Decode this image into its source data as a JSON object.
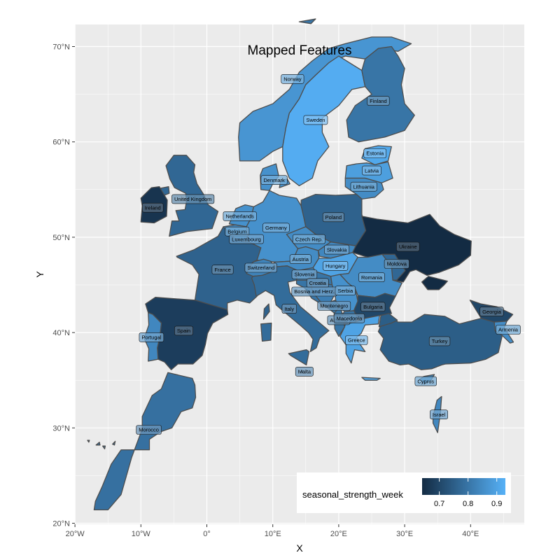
{
  "title": "Mapped Features",
  "x_axis": {
    "title": "X",
    "ticks": [
      "20°W",
      "10°W",
      "0°",
      "10°E",
      "20°E",
      "30°E",
      "40°E"
    ]
  },
  "y_axis": {
    "title": "Y",
    "ticks": [
      "20°N",
      "30°N",
      "40°N",
      "50°N",
      "60°N",
      "70°N"
    ]
  },
  "legend": {
    "title": "seasonal_strength_week",
    "tick_labels": [
      "0.7",
      "0.8",
      "0.9"
    ],
    "color_low": "#132b43",
    "color_high": "#56b1f7",
    "placement": "bottom-right"
  },
  "colors": {
    "panel": "#ebebeb",
    "grid": "#ffffff",
    "border": "#4d4d4d"
  },
  "chart_data": {
    "type": "choropleth",
    "variable": "seasonal_strength_week",
    "value_range": [
      0.64,
      0.93
    ],
    "lon_range": [
      -20,
      48
    ],
    "lat_range": [
      20,
      72
    ],
    "regions": [
      {
        "name": "Norway",
        "value": 0.87
      },
      {
        "name": "Sweden",
        "value": 0.92
      },
      {
        "name": "Finland",
        "value": 0.8
      },
      {
        "name": "Estonia",
        "value": 0.91
      },
      {
        "name": "Latvia",
        "value": 0.89
      },
      {
        "name": "Lithuania",
        "value": 0.85
      },
      {
        "name": "Denmark",
        "value": 0.86
      },
      {
        "name": "United Kingdom",
        "value": 0.77
      },
      {
        "name": "Ireland",
        "value": 0.66
      },
      {
        "name": "Netherlands",
        "value": 0.86
      },
      {
        "name": "Belgium",
        "value": 0.85
      },
      {
        "name": "Luxembourg",
        "value": 0.83
      },
      {
        "name": "Germany",
        "value": 0.86
      },
      {
        "name": "Poland",
        "value": 0.76
      },
      {
        "name": "Czech Rep.",
        "value": 0.85
      },
      {
        "name": "Slovakia",
        "value": 0.84
      },
      {
        "name": "Ukraine",
        "value": 0.64
      },
      {
        "name": "Moldova",
        "value": 0.77
      },
      {
        "name": "Austria",
        "value": 0.85
      },
      {
        "name": "Hungary",
        "value": 0.9
      },
      {
        "name": "Switzerland",
        "value": 0.83
      },
      {
        "name": "Slovenia",
        "value": 0.83
      },
      {
        "name": "Croatia",
        "value": 0.8
      },
      {
        "name": "Bosnia and Herz.",
        "value": 0.82
      },
      {
        "name": "Serbia",
        "value": 0.86
      },
      {
        "name": "Romania",
        "value": 0.85
      },
      {
        "name": "Montenegro",
        "value": 0.8
      },
      {
        "name": "Albania",
        "value": 0.8
      },
      {
        "name": "Macedonia",
        "value": 0.8
      },
      {
        "name": "Bulgaria",
        "value": 0.7
      },
      {
        "name": "Greece",
        "value": 0.9
      },
      {
        "name": "France",
        "value": 0.76
      },
      {
        "name": "Spain",
        "value": 0.68
      },
      {
        "name": "Portugal",
        "value": 0.84
      },
      {
        "name": "Italy",
        "value": 0.78
      },
      {
        "name": "Malta",
        "value": 0.8
      },
      {
        "name": "Morocco",
        "value": 0.79
      },
      {
        "name": "Turkey",
        "value": 0.75
      },
      {
        "name": "Georgia",
        "value": 0.7
      },
      {
        "name": "Armenia",
        "value": 0.85
      },
      {
        "name": "Cyprus",
        "value": 0.85
      },
      {
        "name": "Israel",
        "value": 0.84
      }
    ]
  }
}
